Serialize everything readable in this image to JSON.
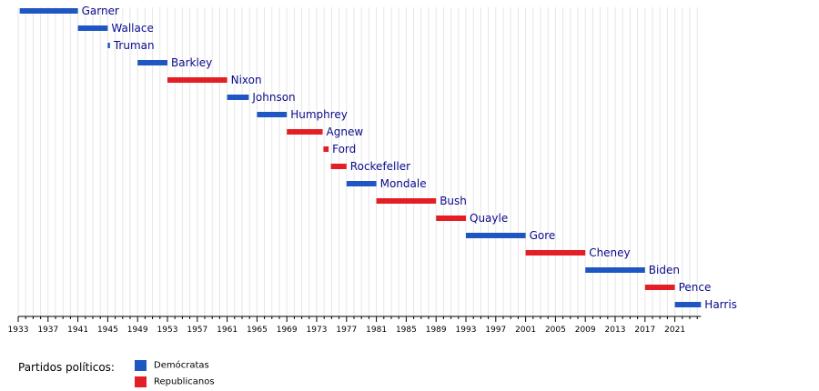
{
  "colors": {
    "democrat": "#1e57c4",
    "republican": "#e41e25",
    "label": "#0a0a8c",
    "grid": "#e6e6e6",
    "axis": "#000000"
  },
  "chart_data": {
    "type": "bar",
    "subtype": "timeline-gantt",
    "title": "",
    "xlabel": "",
    "ylabel": "",
    "xlim": [
      1933,
      2024.5
    ],
    "x_ticks": [
      1933,
      1937,
      1941,
      1945,
      1949,
      1953,
      1957,
      1961,
      1965,
      1969,
      1973,
      1977,
      1981,
      1985,
      1989,
      1993,
      1997,
      2001,
      2005,
      2009,
      2013,
      2017,
      2021
    ],
    "grid": true,
    "series": [
      {
        "name": "Demócratas",
        "party": "democrat"
      },
      {
        "name": "Republicanos",
        "party": "republican"
      }
    ],
    "bars": [
      {
        "name": "Garner",
        "start": 1933.2,
        "end": 1941.0,
        "party": "democrat"
      },
      {
        "name": "Wallace",
        "start": 1941.0,
        "end": 1945.0,
        "party": "democrat"
      },
      {
        "name": "Truman",
        "start": 1945.0,
        "end": 1945.3,
        "party": "democrat"
      },
      {
        "name": "Barkley",
        "start": 1949.0,
        "end": 1953.0,
        "party": "democrat"
      },
      {
        "name": "Nixon",
        "start": 1953.0,
        "end": 1961.0,
        "party": "republican"
      },
      {
        "name": "Johnson",
        "start": 1961.0,
        "end": 1963.9,
        "party": "democrat"
      },
      {
        "name": "Humphrey",
        "start": 1965.0,
        "end": 1969.0,
        "party": "democrat"
      },
      {
        "name": "Agnew",
        "start": 1969.0,
        "end": 1973.8,
        "party": "republican"
      },
      {
        "name": "Ford",
        "start": 1973.9,
        "end": 1974.6,
        "party": "republican"
      },
      {
        "name": "Rockefeller",
        "start": 1974.9,
        "end": 1977.0,
        "party": "republican"
      },
      {
        "name": "Mondale",
        "start": 1977.0,
        "end": 1981.0,
        "party": "democrat"
      },
      {
        "name": "Bush",
        "start": 1981.0,
        "end": 1989.0,
        "party": "republican"
      },
      {
        "name": "Quayle",
        "start": 1989.0,
        "end": 1993.0,
        "party": "republican"
      },
      {
        "name": "Gore",
        "start": 1993.0,
        "end": 2001.0,
        "party": "democrat"
      },
      {
        "name": "Cheney",
        "start": 2001.0,
        "end": 2009.0,
        "party": "republican"
      },
      {
        "name": "Biden",
        "start": 2009.0,
        "end": 2017.0,
        "party": "democrat"
      },
      {
        "name": "Pence",
        "start": 2017.0,
        "end": 2021.0,
        "party": "republican"
      },
      {
        "name": "Harris",
        "start": 2021.0,
        "end": 2024.5,
        "party": "democrat"
      }
    ]
  },
  "legend": {
    "title": "Partidos políticos:",
    "items": [
      {
        "label": "Demócratas",
        "party": "democrat"
      },
      {
        "label": "Republicanos",
        "party": "republican"
      }
    ]
  }
}
